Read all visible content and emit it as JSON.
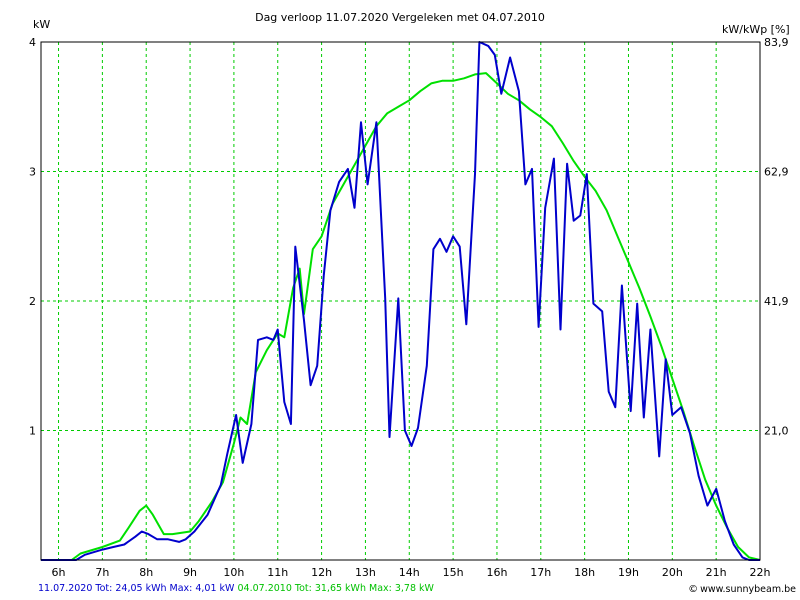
{
  "chart_data": {
    "type": "line",
    "title": "Dag  verloop 11.07.2020   Vergeleken met 04.07.2010",
    "ylabel": "kW",
    "y2label": "kW/kWp [%]",
    "ylim": [
      0,
      4
    ],
    "y2lim": [
      0,
      83.9
    ],
    "yticks": [
      {
        "value": 1,
        "label": "1"
      },
      {
        "value": 2,
        "label": "2"
      },
      {
        "value": 3,
        "label": "3"
      },
      {
        "value": 4,
        "label": "4"
      }
    ],
    "y2ticks": [
      {
        "value": 1,
        "label": "21,0"
      },
      {
        "value": 2,
        "label": "41,9"
      },
      {
        "value": 3,
        "label": "62,9"
      },
      {
        "value": 4,
        "label": "83,9"
      }
    ],
    "xlim": [
      5.6,
      22.0
    ],
    "xticks": [
      {
        "value": 6,
        "label": "6h"
      },
      {
        "value": 7,
        "label": "7h"
      },
      {
        "value": 8,
        "label": "8h"
      },
      {
        "value": 9,
        "label": "9h"
      },
      {
        "value": 10,
        "label": "10h"
      },
      {
        "value": 11,
        "label": "11h"
      },
      {
        "value": 12,
        "label": "12h"
      },
      {
        "value": 13,
        "label": "13h"
      },
      {
        "value": 14,
        "label": "14h"
      },
      {
        "value": 15,
        "label": "15h"
      },
      {
        "value": 16,
        "label": "16h"
      },
      {
        "value": 17,
        "label": "17h"
      },
      {
        "value": 18,
        "label": "18h"
      },
      {
        "value": 19,
        "label": "19h"
      },
      {
        "value": 20,
        "label": "20h"
      },
      {
        "value": 21,
        "label": "21h"
      },
      {
        "value": 22,
        "label": "22h"
      }
    ],
    "grid": true,
    "series": [
      {
        "legend": "04.07.2010 Tot: 31,65 kWh Max: 3,78 kW",
        "color": "#00e000",
        "points": [
          [
            5.6,
            0.0
          ],
          [
            6.3,
            0.0
          ],
          [
            6.5,
            0.05
          ],
          [
            7.0,
            0.1
          ],
          [
            7.4,
            0.15
          ],
          [
            7.6,
            0.25
          ],
          [
            7.85,
            0.38
          ],
          [
            8.0,
            0.42
          ],
          [
            8.15,
            0.35
          ],
          [
            8.4,
            0.2
          ],
          [
            8.6,
            0.2
          ],
          [
            9.0,
            0.22
          ],
          [
            9.2,
            0.3
          ],
          [
            9.5,
            0.45
          ],
          [
            9.75,
            0.6
          ],
          [
            10.0,
            0.9
          ],
          [
            10.15,
            1.1
          ],
          [
            10.3,
            1.05
          ],
          [
            10.5,
            1.45
          ],
          [
            10.75,
            1.62
          ],
          [
            11.0,
            1.75
          ],
          [
            11.15,
            1.72
          ],
          [
            11.35,
            2.1
          ],
          [
            11.5,
            2.25
          ],
          [
            11.6,
            1.9
          ],
          [
            11.8,
            2.4
          ],
          [
            12.0,
            2.5
          ],
          [
            12.25,
            2.75
          ],
          [
            12.5,
            2.9
          ],
          [
            12.75,
            3.05
          ],
          [
            13.0,
            3.2
          ],
          [
            13.25,
            3.35
          ],
          [
            13.5,
            3.45
          ],
          [
            13.75,
            3.5
          ],
          [
            14.0,
            3.55
          ],
          [
            14.25,
            3.62
          ],
          [
            14.5,
            3.68
          ],
          [
            14.75,
            3.7
          ],
          [
            15.0,
            3.7
          ],
          [
            15.25,
            3.72
          ],
          [
            15.5,
            3.75
          ],
          [
            15.75,
            3.76
          ],
          [
            16.0,
            3.68
          ],
          [
            16.25,
            3.6
          ],
          [
            16.5,
            3.55
          ],
          [
            16.75,
            3.48
          ],
          [
            17.0,
            3.42
          ],
          [
            17.25,
            3.35
          ],
          [
            17.5,
            3.22
          ],
          [
            17.75,
            3.08
          ],
          [
            18.0,
            2.96
          ],
          [
            18.25,
            2.85
          ],
          [
            18.5,
            2.7
          ],
          [
            18.75,
            2.5
          ],
          [
            19.0,
            2.3
          ],
          [
            19.25,
            2.1
          ],
          [
            19.5,
            1.88
          ],
          [
            19.75,
            1.65
          ],
          [
            20.0,
            1.4
          ],
          [
            20.25,
            1.15
          ],
          [
            20.5,
            0.88
          ],
          [
            20.75,
            0.62
          ],
          [
            21.0,
            0.42
          ],
          [
            21.25,
            0.25
          ],
          [
            21.5,
            0.1
          ],
          [
            21.75,
            0.02
          ],
          [
            22.0,
            0.0
          ]
        ]
      },
      {
        "legend": "11.07.2020 Tot: 24,05 kWh Max: 4,01 kW",
        "color": "#0000cc",
        "points": [
          [
            5.6,
            0.0
          ],
          [
            6.4,
            0.0
          ],
          [
            6.6,
            0.04
          ],
          [
            6.8,
            0.06
          ],
          [
            7.0,
            0.08
          ],
          [
            7.25,
            0.1
          ],
          [
            7.5,
            0.12
          ],
          [
            7.75,
            0.18
          ],
          [
            7.9,
            0.22
          ],
          [
            8.05,
            0.2
          ],
          [
            8.25,
            0.16
          ],
          [
            8.5,
            0.16
          ],
          [
            8.75,
            0.14
          ],
          [
            8.9,
            0.16
          ],
          [
            9.1,
            0.22
          ],
          [
            9.4,
            0.35
          ],
          [
            9.7,
            0.58
          ],
          [
            9.85,
            0.82
          ],
          [
            10.05,
            1.12
          ],
          [
            10.2,
            0.75
          ],
          [
            10.4,
            1.05
          ],
          [
            10.55,
            1.7
          ],
          [
            10.75,
            1.72
          ],
          [
            10.9,
            1.7
          ],
          [
            11.0,
            1.78
          ],
          [
            11.15,
            1.22
          ],
          [
            11.3,
            1.05
          ],
          [
            11.4,
            2.42
          ],
          [
            11.6,
            1.85
          ],
          [
            11.75,
            1.35
          ],
          [
            11.9,
            1.5
          ],
          [
            12.05,
            2.2
          ],
          [
            12.2,
            2.7
          ],
          [
            12.4,
            2.92
          ],
          [
            12.6,
            3.02
          ],
          [
            12.75,
            2.72
          ],
          [
            12.9,
            3.38
          ],
          [
            13.05,
            2.9
          ],
          [
            13.25,
            3.38
          ],
          [
            13.45,
            2.02
          ],
          [
            13.55,
            0.95
          ],
          [
            13.75,
            2.02
          ],
          [
            13.9,
            1.0
          ],
          [
            14.05,
            0.88
          ],
          [
            14.2,
            1.02
          ],
          [
            14.4,
            1.5
          ],
          [
            14.55,
            2.4
          ],
          [
            14.7,
            2.48
          ],
          [
            14.85,
            2.38
          ],
          [
            15.0,
            2.5
          ],
          [
            15.15,
            2.42
          ],
          [
            15.3,
            1.82
          ],
          [
            15.5,
            2.98
          ],
          [
            15.6,
            4.0
          ],
          [
            15.8,
            3.97
          ],
          [
            15.95,
            3.9
          ],
          [
            16.1,
            3.6
          ],
          [
            16.3,
            3.88
          ],
          [
            16.5,
            3.62
          ],
          [
            16.65,
            2.9
          ],
          [
            16.8,
            3.02
          ],
          [
            16.95,
            1.8
          ],
          [
            17.1,
            2.72
          ],
          [
            17.3,
            3.1
          ],
          [
            17.45,
            1.78
          ],
          [
            17.6,
            3.06
          ],
          [
            17.75,
            2.62
          ],
          [
            17.9,
            2.66
          ],
          [
            18.05,
            2.98
          ],
          [
            18.2,
            1.98
          ],
          [
            18.4,
            1.92
          ],
          [
            18.55,
            1.3
          ],
          [
            18.7,
            1.18
          ],
          [
            18.85,
            2.12
          ],
          [
            19.05,
            1.15
          ],
          [
            19.2,
            1.98
          ],
          [
            19.35,
            1.1
          ],
          [
            19.5,
            1.78
          ],
          [
            19.7,
            0.8
          ],
          [
            19.85,
            1.55
          ],
          [
            20.0,
            1.12
          ],
          [
            20.2,
            1.18
          ],
          [
            20.4,
            0.98
          ],
          [
            20.6,
            0.65
          ],
          [
            20.8,
            0.42
          ],
          [
            21.0,
            0.55
          ],
          [
            21.2,
            0.3
          ],
          [
            21.4,
            0.12
          ],
          [
            21.6,
            0.02
          ],
          [
            21.75,
            0.0
          ],
          [
            22.0,
            0.0
          ]
        ]
      }
    ]
  },
  "footer": {
    "credit": "www.sunnybeam.be",
    "credit_symbol": "©"
  }
}
